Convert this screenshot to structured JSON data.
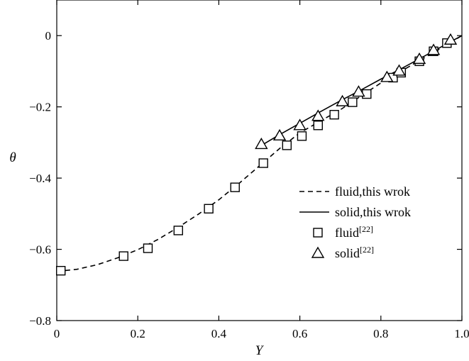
{
  "chart_data": {
    "type": "line",
    "xlabel": "Y",
    "ylabel": "θ",
    "xlim": [
      0,
      1.0
    ],
    "ylim": [
      -0.8,
      0.1
    ],
    "x_ticks": [
      {
        "value": 0,
        "label": "0"
      },
      {
        "value": 0.2,
        "label": "0.2"
      },
      {
        "value": 0.4,
        "label": "0.4"
      },
      {
        "value": 0.6,
        "label": "0.6"
      },
      {
        "value": 0.8,
        "label": "0.8"
      },
      {
        "value": 1.0,
        "label": "1.0"
      }
    ],
    "y_ticks": [
      {
        "value": 0,
        "label": "0"
      },
      {
        "value": -0.2,
        "label": "−0.2"
      },
      {
        "value": -0.4,
        "label": "−0.4"
      },
      {
        "value": -0.6,
        "label": "−0.6"
      },
      {
        "value": -0.8,
        "label": "−0.8"
      }
    ],
    "grid": false,
    "legend_position": "bottom-right",
    "series": [
      {
        "name": "fluid,this wrok",
        "legend_label": "fluid,this wrok",
        "style": "dashed-line",
        "color": "#000000",
        "x": [
          0.0,
          0.05,
          0.1,
          0.15,
          0.2,
          0.25,
          0.3,
          0.35,
          0.4,
          0.45,
          0.5,
          0.55,
          0.6,
          0.65,
          0.7,
          0.75,
          0.8,
          0.85,
          0.9,
          0.95,
          1.0
        ],
        "y": [
          -0.662,
          -0.656,
          -0.643,
          -0.624,
          -0.601,
          -0.572,
          -0.538,
          -0.501,
          -0.461,
          -0.415,
          -0.366,
          -0.317,
          -0.273,
          -0.24,
          -0.208,
          -0.17,
          -0.133,
          -0.1,
          -0.067,
          -0.034,
          0.0
        ]
      },
      {
        "name": "solid,this wrok",
        "legend_label": "solid,this wrok",
        "style": "solid-line",
        "color": "#000000",
        "x": [
          0.51,
          0.55,
          0.6,
          0.65,
          0.7,
          0.75,
          0.8,
          0.85,
          0.9,
          0.95,
          1.0
        ],
        "y": [
          -0.305,
          -0.278,
          -0.246,
          -0.214,
          -0.183,
          -0.153,
          -0.122,
          -0.093,
          -0.062,
          -0.031,
          0.0
        ]
      },
      {
        "name": "fluid[22]",
        "legend_label": "fluid",
        "legend_sup": "[22]",
        "style": "square-markers",
        "color": "#000000",
        "x": [
          0.01,
          0.165,
          0.225,
          0.3,
          0.375,
          0.44,
          0.51,
          0.568,
          0.605,
          0.645,
          0.685,
          0.73,
          0.765,
          0.83,
          0.85,
          0.895,
          0.93,
          0.963
        ],
        "y": [
          -0.66,
          -0.619,
          -0.597,
          -0.547,
          -0.486,
          -0.426,
          -0.358,
          -0.308,
          -0.282,
          -0.252,
          -0.222,
          -0.187,
          -0.164,
          -0.118,
          -0.104,
          -0.072,
          -0.044,
          -0.021
        ]
      },
      {
        "name": "solid[22]",
        "legend_label": "solid",
        "legend_sup": "[22]",
        "style": "triangle-markers",
        "color": "#000000",
        "x": [
          0.505,
          0.55,
          0.6,
          0.645,
          0.705,
          0.745,
          0.815,
          0.845,
          0.895,
          0.93,
          0.972
        ],
        "y": [
          -0.305,
          -0.281,
          -0.252,
          -0.226,
          -0.185,
          -0.158,
          -0.117,
          -0.099,
          -0.066,
          -0.041,
          -0.012
        ]
      }
    ]
  }
}
